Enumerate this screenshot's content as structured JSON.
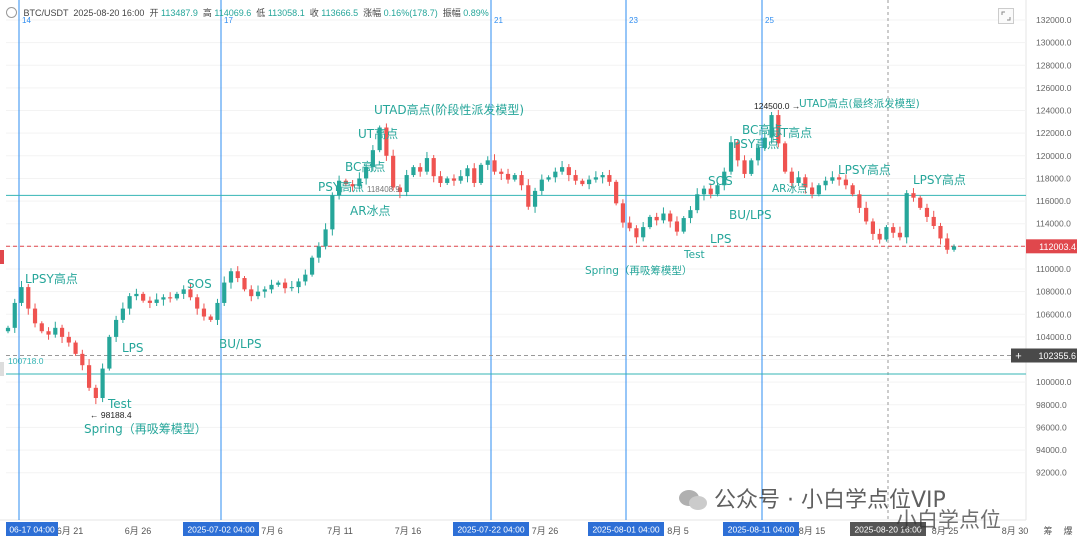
{
  "header": {
    "symbol": "BTC/USDT",
    "datetime": "2025-08-20 16:00",
    "open_label": "开",
    "open": "113487.9",
    "high_label": "高",
    "high": "114069.6",
    "low_label": "低",
    "low": "113058.1",
    "close_label": "收",
    "close": "113666.5",
    "change_label": "涨幅",
    "change": "0.16%(178.7)",
    "amp_label": "振幅",
    "amp": "0.89%"
  },
  "chart_data": {
    "type": "candlestick",
    "title": "",
    "xlabel": "",
    "ylabel": "",
    "ylim": [
      91700,
      132700
    ],
    "y_ticks": [
      92000,
      94000,
      96000,
      98000,
      100000,
      102000,
      104000,
      106000,
      108000,
      110000,
      112000,
      114000,
      116000,
      118000,
      120000,
      122000,
      124000,
      126000,
      128000,
      130000,
      132000
    ],
    "x_tick_labels": [
      "6月 21",
      "6月 26",
      "7月 6",
      "7月 11",
      "7月 16",
      "7月 26",
      "8月 5",
      "8月 15",
      "8月 25",
      "8月 30",
      "筹",
      "爆"
    ],
    "price_badges": [
      {
        "text": "112003.4",
        "color": "#e0474c"
      },
      {
        "text": "102355.6",
        "color": "#4a4a4a"
      }
    ],
    "time_badges": [
      {
        "text": "06-17 04:00",
        "color": "#2d6fd6"
      },
      {
        "text": "2025-07-02 04:00",
        "color": "#2d6fd6"
      },
      {
        "text": "2025-07-22 04:00",
        "color": "#2d6fd6"
      },
      {
        "text": "2025-08-01 04:00",
        "color": "#2d6fd6"
      },
      {
        "text": "2025-08-11 04:00",
        "color": "#2d6fd6"
      },
      {
        "text": "2025-08-20 16:00",
        "color": "#555555"
      }
    ],
    "vline_labels": [
      "14",
      "17",
      "21",
      "23",
      "25"
    ],
    "hlines": [
      {
        "value": 116500,
        "color": "#35b5b5",
        "style": "solid"
      },
      {
        "value": 112003.4,
        "color": "#e0474c",
        "style": "dashed"
      },
      {
        "value": 102355.6,
        "color": "#999999",
        "style": "dashed"
      },
      {
        "value": 100718,
        "color": "#35b5b5",
        "style": "solid",
        "label": "100718.0"
      }
    ],
    "price_marks": [
      {
        "text": "124500.0",
        "value": 124500
      },
      {
        "text": "98188.4",
        "value": 98188.4
      },
      {
        "text": "118408.9",
        "value": 118408.9
      }
    ],
    "annotations": [
      "LPSY高点",
      "Spring（再吸筹模型）",
      "Test",
      "LPS",
      "SOS",
      "BU/LPS",
      "PSY高点",
      "BC高点",
      "AR冰点",
      "UT高点",
      "UTAD高点(阶段性派发模型)",
      "Spring（再吸筹模型）",
      "Test",
      "LPS",
      "SOS",
      "BU/LPS",
      "PSY高点",
      "BC高点",
      "UT高点",
      "AR冰点",
      "UTAD高点(最终派发模型)",
      "LPSY高点",
      "LPSY高点"
    ],
    "colors": {
      "up": "#26a69a",
      "down": "#ef5350",
      "annotation": "#26a69a",
      "vline": "#2d8cf0"
    },
    "series_close": [
      {
        "date": "06-17",
        "close": 104800
      },
      {
        "date": "06-17",
        "close": 107000
      },
      {
        "date": "06-18",
        "close": 108400
      },
      {
        "date": "06-18",
        "close": 106500
      },
      {
        "date": "06-19",
        "close": 105200
      },
      {
        "date": "06-19",
        "close": 104500
      },
      {
        "date": "06-20",
        "close": 104200
      },
      {
        "date": "06-20",
        "close": 104800
      },
      {
        "date": "06-21",
        "close": 104000
      },
      {
        "date": "06-21",
        "close": 103500
      },
      {
        "date": "06-22",
        "close": 102500
      },
      {
        "date": "06-22",
        "close": 101500
      },
      {
        "date": "06-22",
        "close": 99500
      },
      {
        "date": "06-23",
        "close": 98600
      },
      {
        "date": "06-23",
        "close": 101200
      },
      {
        "date": "06-24",
        "close": 104000
      },
      {
        "date": "06-24",
        "close": 105500
      },
      {
        "date": "06-25",
        "close": 106500
      },
      {
        "date": "06-25",
        "close": 107600
      },
      {
        "date": "06-26",
        "close": 107800
      },
      {
        "date": "06-26",
        "close": 107200
      },
      {
        "date": "06-27",
        "close": 107000
      },
      {
        "date": "06-27",
        "close": 107300
      },
      {
        "date": "06-28",
        "close": 107500
      },
      {
        "date": "06-28",
        "close": 107400
      },
      {
        "date": "06-29",
        "close": 107800
      },
      {
        "date": "06-29",
        "close": 108200
      },
      {
        "date": "06-30",
        "close": 107500
      },
      {
        "date": "06-30",
        "close": 106500
      },
      {
        "date": "07-01",
        "close": 105800
      },
      {
        "date": "07-01",
        "close": 105500
      },
      {
        "date": "07-02",
        "close": 107000
      },
      {
        "date": "07-02",
        "close": 108800
      },
      {
        "date": "07-03",
        "close": 109800
      },
      {
        "date": "07-03",
        "close": 109200
      },
      {
        "date": "07-04",
        "close": 108200
      },
      {
        "date": "07-04",
        "close": 107600
      },
      {
        "date": "07-05",
        "close": 108000
      },
      {
        "date": "07-05",
        "close": 108200
      },
      {
        "date": "07-06",
        "close": 108600
      },
      {
        "date": "07-06",
        "close": 108800
      },
      {
        "date": "07-07",
        "close": 108300
      },
      {
        "date": "07-07",
        "close": 108400
      },
      {
        "date": "07-08",
        "close": 108900
      },
      {
        "date": "07-08",
        "close": 109500
      },
      {
        "date": "07-09",
        "close": 111000
      },
      {
        "date": "07-09",
        "close": 112000
      },
      {
        "date": "07-10",
        "close": 113500
      },
      {
        "date": "07-10",
        "close": 116500
      },
      {
        "date": "07-11",
        "close": 117800
      },
      {
        "date": "07-11",
        "close": 117500
      },
      {
        "date": "07-12",
        "close": 117300
      },
      {
        "date": "07-12",
        "close": 118000
      },
      {
        "date": "07-13",
        "close": 119000
      },
      {
        "date": "07-13",
        "close": 120500
      },
      {
        "date": "07-14",
        "close": 122500
      },
      {
        "date": "07-14",
        "close": 120000
      },
      {
        "date": "07-15",
        "close": 117200
      },
      {
        "date": "07-15",
        "close": 116800
      },
      {
        "date": "07-16",
        "close": 118300
      },
      {
        "date": "07-16",
        "close": 119000
      },
      {
        "date": "07-17",
        "close": 118600
      },
      {
        "date": "07-17",
        "close": 119800
      },
      {
        "date": "07-18",
        "close": 118200
      },
      {
        "date": "07-18",
        "close": 117600
      },
      {
        "date": "07-19",
        "close": 118000
      },
      {
        "date": "07-19",
        "close": 117800
      },
      {
        "date": "07-20",
        "close": 118200
      },
      {
        "date": "07-20",
        "close": 118900
      },
      {
        "date": "07-21",
        "close": 117600
      },
      {
        "date": "07-21",
        "close": 119200
      },
      {
        "date": "07-22",
        "close": 119600
      },
      {
        "date": "07-22",
        "close": 118600
      },
      {
        "date": "07-23",
        "close": 118400
      },
      {
        "date": "07-23",
        "close": 117900
      },
      {
        "date": "07-24",
        "close": 118300
      },
      {
        "date": "07-24",
        "close": 117400
      },
      {
        "date": "07-25",
        "close": 115500
      },
      {
        "date": "07-25",
        "close": 116900
      },
      {
        "date": "07-26",
        "close": 117900
      },
      {
        "date": "07-26",
        "close": 118100
      },
      {
        "date": "07-27",
        "close": 118600
      },
      {
        "date": "07-27",
        "close": 119000
      },
      {
        "date": "07-28",
        "close": 118300
      },
      {
        "date": "07-28",
        "close": 117800
      },
      {
        "date": "07-29",
        "close": 117500
      },
      {
        "date": "07-29",
        "close": 117900
      },
      {
        "date": "07-30",
        "close": 118100
      },
      {
        "date": "07-30",
        "close": 118300
      },
      {
        "date": "07-31",
        "close": 117700
      },
      {
        "date": "07-31",
        "close": 115800
      },
      {
        "date": "08-01",
        "close": 114100
      },
      {
        "date": "08-01",
        "close": 113600
      },
      {
        "date": "08-02",
        "close": 112800
      },
      {
        "date": "08-02",
        "close": 113700
      },
      {
        "date": "08-03",
        "close": 114600
      },
      {
        "date": "08-03",
        "close": 114300
      },
      {
        "date": "08-04",
        "close": 114900
      },
      {
        "date": "08-04",
        "close": 114200
      },
      {
        "date": "08-05",
        "close": 113300
      },
      {
        "date": "08-05",
        "close": 114500
      },
      {
        "date": "08-06",
        "close": 115200
      },
      {
        "date": "08-06",
        "close": 116600
      },
      {
        "date": "08-07",
        "close": 117100
      },
      {
        "date": "08-07",
        "close": 116600
      },
      {
        "date": "08-08",
        "close": 117400
      },
      {
        "date": "08-08",
        "close": 118600
      },
      {
        "date": "08-09",
        "close": 121200
      },
      {
        "date": "08-09",
        "close": 119600
      },
      {
        "date": "08-10",
        "close": 118400
      },
      {
        "date": "08-10",
        "close": 119600
      },
      {
        "date": "08-11",
        "close": 120700
      },
      {
        "date": "08-11",
        "close": 121600
      },
      {
        "date": "08-12",
        "close": 123600
      },
      {
        "date": "08-12",
        "close": 121100
      },
      {
        "date": "08-13",
        "close": 118600
      },
      {
        "date": "08-13",
        "close": 117600
      },
      {
        "date": "08-14",
        "close": 118100
      },
      {
        "date": "08-14",
        "close": 117200
      },
      {
        "date": "08-15",
        "close": 116600
      },
      {
        "date": "08-15",
        "close": 117400
      },
      {
        "date": "08-16",
        "close": 117800
      },
      {
        "date": "08-16",
        "close": 118100
      },
      {
        "date": "08-17",
        "close": 117900
      },
      {
        "date": "08-17",
        "close": 117400
      },
      {
        "date": "08-18",
        "close": 116600
      },
      {
        "date": "08-18",
        "close": 115400
      },
      {
        "date": "08-19",
        "close": 114200
      },
      {
        "date": "08-19",
        "close": 113100
      },
      {
        "date": "08-20",
        "close": 112600
      },
      {
        "date": "08-20",
        "close": 113700
      },
      {
        "date": "08-21",
        "close": 113200
      },
      {
        "date": "08-21",
        "close": 112800
      },
      {
        "date": "08-22",
        "close": 116700
      },
      {
        "date": "08-22",
        "close": 116300
      },
      {
        "date": "08-23",
        "close": 115400
      },
      {
        "date": "08-23",
        "close": 114600
      },
      {
        "date": "08-24",
        "close": 113800
      },
      {
        "date": "08-24",
        "close": 112700
      },
      {
        "date": "08-25",
        "close": 111700
      },
      {
        "date": "08-25",
        "close": 112000
      }
    ]
  },
  "watermark": {
    "line1": "公众号 · 小白学点位VIP",
    "line2": "小白学点位"
  }
}
